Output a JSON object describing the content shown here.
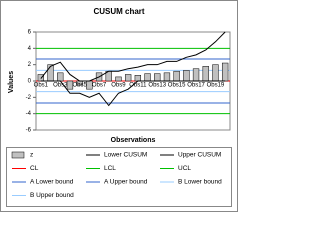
{
  "chart_data": {
    "type": "control",
    "title": "CUSUM chart",
    "x_label": "Observations",
    "y_label": "Values",
    "categories": [
      "Obs1",
      null,
      "Obs3",
      null,
      "Obs5",
      null,
      "Obs7",
      null,
      "Obs9",
      null,
      "Obs11",
      null,
      "Obs13",
      null,
      "Obs15",
      null,
      "Obs17",
      null,
      "Obs19",
      null
    ],
    "ylim": [
      -6,
      6
    ],
    "yticks": [
      -6,
      -4,
      -2,
      0,
      2,
      4,
      6
    ],
    "series": [
      {
        "name": "z",
        "kind": "bar",
        "color": "#c0c0c0",
        "values": [
          0.8,
          2,
          1,
          -1,
          -0.5,
          -1,
          1,
          1.2,
          0.5,
          0.8,
          0.7,
          0.9,
          0.9,
          1,
          1.2,
          1.3,
          1.5,
          1.8,
          2,
          2.2
        ]
      },
      {
        "name": "Lower CUSUM",
        "kind": "line",
        "color": "#000000",
        "values": [
          0,
          0,
          0,
          -1.5,
          -1.5,
          -2,
          -1.5,
          -3,
          -1.5,
          -1,
          0,
          0,
          0,
          0,
          0,
          0,
          0,
          0,
          0,
          0
        ]
      },
      {
        "name": "Upper CUSUM",
        "kind": "line",
        "color": "#000000",
        "values": [
          0.3,
          1.8,
          2.3,
          0.8,
          0,
          0,
          0.5,
          1.2,
          1.2,
          1.5,
          1.7,
          2,
          2,
          2.4,
          2.4,
          2.9,
          3.2,
          3.8,
          4.8,
          6
        ]
      },
      {
        "name": "CL",
        "kind": "hline",
        "color": "#ff0000",
        "value": 0
      },
      {
        "name": "LCL",
        "kind": "hline",
        "color": "#00c000",
        "value": -4
      },
      {
        "name": "UCL",
        "kind": "hline",
        "color": "#00c000",
        "value": 4
      },
      {
        "name": "A Lower bound",
        "kind": "hline",
        "color": "#3366cc",
        "value": -2.7
      },
      {
        "name": "A Upper bound",
        "kind": "hline",
        "color": "#3366cc",
        "value": 2.7
      },
      {
        "name": "B Lower bound",
        "kind": "hline",
        "color": "#99ccff",
        "value": -1.3
      },
      {
        "name": "B Upper bound",
        "kind": "hline",
        "color": "#99ccff",
        "value": 1.3
      }
    ]
  }
}
